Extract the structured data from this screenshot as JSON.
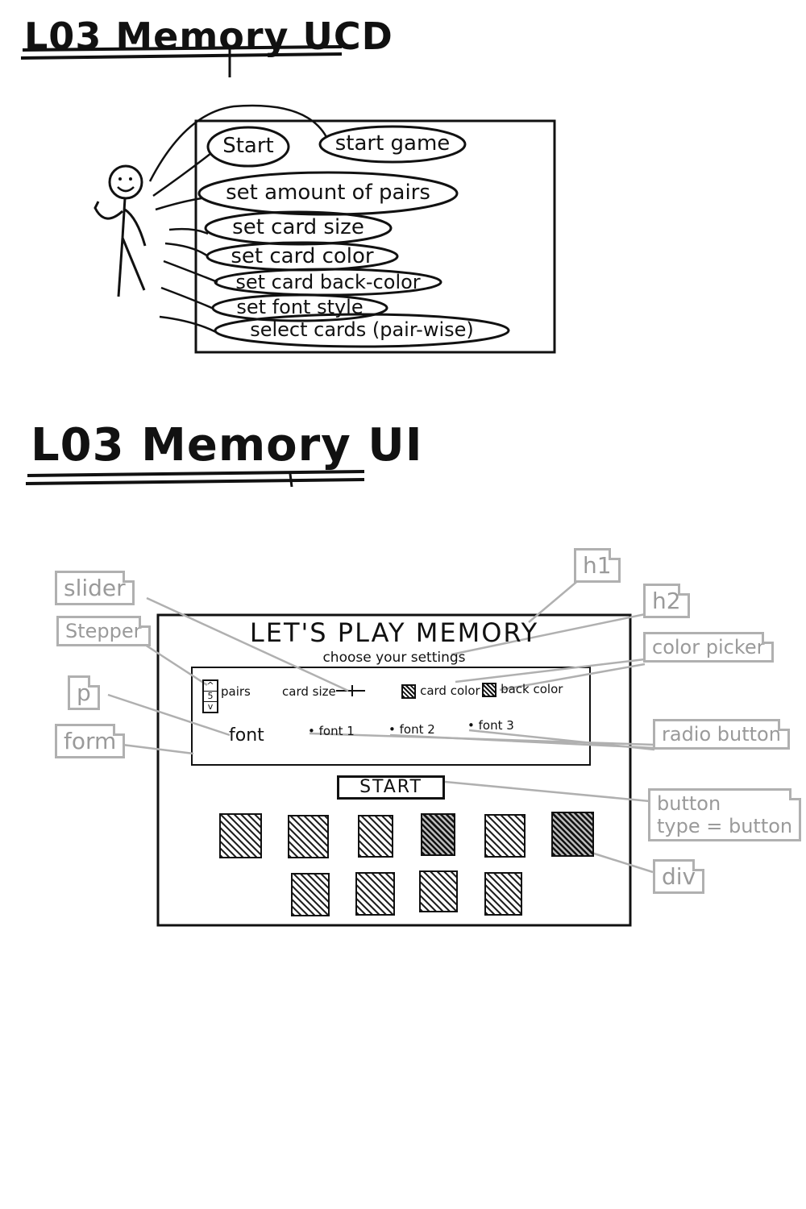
{
  "ucd": {
    "title": "L03 Memory UCD",
    "use_cases": [
      "Start",
      "start game",
      "set amount of pairs",
      "set card size",
      "set card color",
      "set card back-color",
      "set font style",
      "select cards (pair-wise)"
    ]
  },
  "ui": {
    "title": "L03 Memory UI",
    "mockup": {
      "heading": "LET'S PLAY MEMORY",
      "subheading": "choose your settings",
      "stepper_arrows": {
        "up": "^",
        "down": "v"
      },
      "stepper_value": "5",
      "pairs_label": "pairs",
      "card_size_label": "card size",
      "card_color_label": "card color",
      "back_color_label": "back color",
      "font_label": "font",
      "font_options": [
        "font 1",
        "font 2",
        "font 3"
      ],
      "start_button": "START"
    },
    "annotations": {
      "slider": "slider",
      "stepper": "Stepper",
      "p": "p",
      "form": "form",
      "h1": "h1",
      "h2": "h2",
      "color_picker": "color picker",
      "radio_button": "radio button",
      "button_line1": "button",
      "button_line2": "type = button",
      "div": "div"
    }
  }
}
